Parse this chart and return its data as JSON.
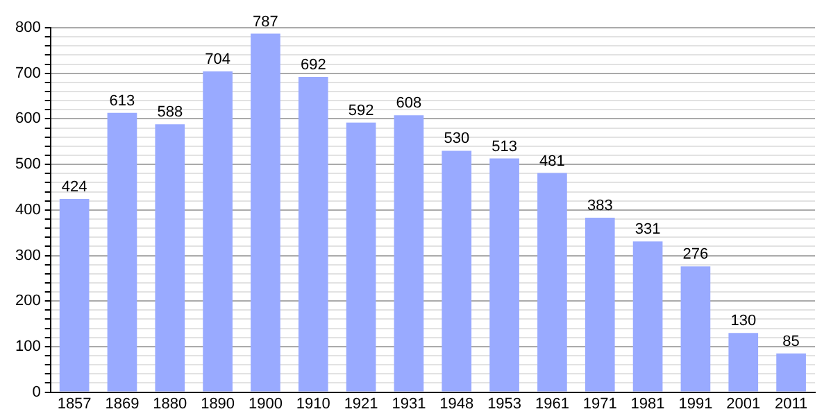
{
  "chart_data": {
    "type": "bar",
    "categories": [
      "1857",
      "1869",
      "1880",
      "1890",
      "1900",
      "1910",
      "1921",
      "1931",
      "1948",
      "1953",
      "1961",
      "1971",
      "1981",
      "1991",
      "2001",
      "2011"
    ],
    "values": [
      424,
      613,
      588,
      704,
      787,
      692,
      592,
      608,
      530,
      513,
      481,
      383,
      331,
      276,
      130,
      85
    ],
    "color": "#99aaff",
    "ylim": [
      0,
      800
    ],
    "yticks": [
      0,
      {
        "value": 20,
        "label": null
      },
      {
        "value": 40,
        "label": null
      },
      {
        "value": 60,
        "label": null
      },
      {
        "value": 80,
        "label": null
      },
      100,
      {
        "value": 120,
        "label": null
      },
      {
        "value": 140,
        "label": null
      },
      {
        "value": 160,
        "label": null
      },
      {
        "value": 180,
        "label": null
      },
      200,
      {
        "value": 220,
        "label": null
      },
      {
        "value": 240,
        "label": null
      },
      {
        "value": 260,
        "label": null
      },
      {
        "value": 280,
        "label": null
      },
      300,
      {
        "value": 320,
        "label": null
      },
      {
        "value": 340,
        "label": null
      },
      {
        "value": 360,
        "label": null
      },
      {
        "value": 380,
        "label": null
      },
      400,
      {
        "value": 420,
        "label": null
      },
      {
        "value": 440,
        "label": null
      },
      {
        "value": 460,
        "label": null
      },
      {
        "value": 480,
        "label": null
      },
      500,
      {
        "value": 520,
        "label": null
      },
      {
        "value": 540,
        "label": null
      },
      {
        "value": 560,
        "label": null
      },
      {
        "value": 580,
        "label": null
      },
      600,
      {
        "value": 620,
        "label": null
      },
      {
        "value": 640,
        "label": null
      },
      {
        "value": 660,
        "label": null
      },
      {
        "value": 680,
        "label": null
      },
      700,
      {
        "value": 720,
        "label": null
      },
      {
        "value": 740,
        "label": null
      },
      {
        "value": 760,
        "label": null
      },
      {
        "value": 780,
        "label": null
      },
      800
    ],
    "grid": "y",
    "data_labels": true,
    "legend": false
  }
}
